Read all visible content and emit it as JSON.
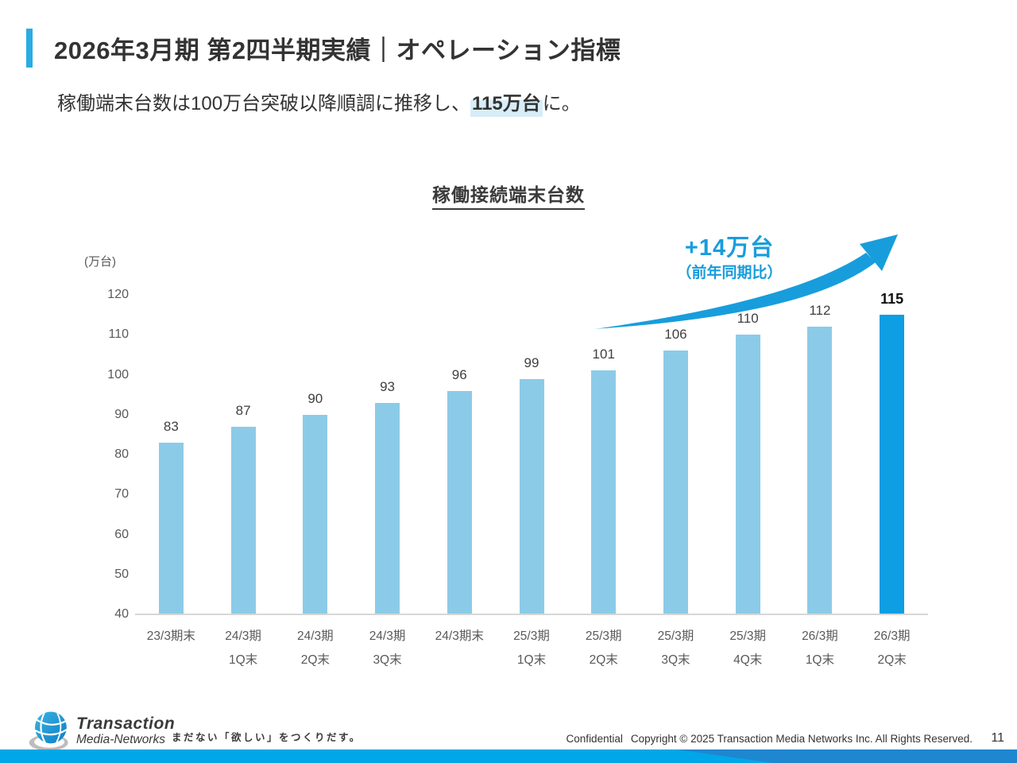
{
  "slide": {
    "title": "2026年3月期 第2四半期実績｜オペレーション指標",
    "subtitle_prefix": "稼働端末台数は100万台突破以降順調に推移し、",
    "subtitle_highlight": "115万台",
    "subtitle_suffix": "に。"
  },
  "chart_data": {
    "type": "bar",
    "title": "稼働接続端末台数",
    "unit_label": "(万台)",
    "categories": [
      {
        "line1": "23/3期末",
        "line2": ""
      },
      {
        "line1": "24/3期",
        "line2": "1Q末"
      },
      {
        "line1": "24/3期",
        "line2": "2Q末"
      },
      {
        "line1": "24/3期",
        "line2": "3Q末"
      },
      {
        "line1": "24/3期末",
        "line2": ""
      },
      {
        "line1": "25/3期",
        "line2": "1Q末"
      },
      {
        "line1": "25/3期",
        "line2": "2Q末"
      },
      {
        "line1": "25/3期",
        "line2": "3Q末"
      },
      {
        "line1": "25/3期",
        "line2": "4Q末"
      },
      {
        "line1": "26/3期",
        "line2": "1Q末"
      },
      {
        "line1": "26/3期",
        "line2": "2Q末"
      }
    ],
    "values": [
      83,
      87,
      90,
      93,
      96,
      99,
      101,
      106,
      110,
      112,
      115
    ],
    "ylim": [
      40,
      120
    ],
    "yticks": [
      120,
      110,
      100,
      90,
      80,
      70,
      60,
      50,
      40
    ],
    "grid": false,
    "legend": null,
    "bar_color": "#8ccbe8",
    "highlight_bar_color": "#0d9ee3",
    "highlight_index": 10,
    "annotation": {
      "label": "+14万台",
      "sublabel": "（前年同期比）",
      "color": "#189ddc"
    }
  },
  "footer": {
    "logo_line1": "Transaction",
    "logo_line2": "Media-Networks",
    "tagline": "まだない「欲しい」をつくりだす。",
    "confidential": "Confidential",
    "copyright": "Copyright © 2025 Transaction Media Networks Inc. All Rights Reserved.",
    "page_number": "11"
  },
  "colors": {
    "header_accent": "#29abe2",
    "subtitle_highlight_bg": "#d7edf8",
    "bottom_bar_left": "#00a7e8",
    "bottom_bar_right": "#1f86d0",
    "axis_text": "#595959"
  }
}
